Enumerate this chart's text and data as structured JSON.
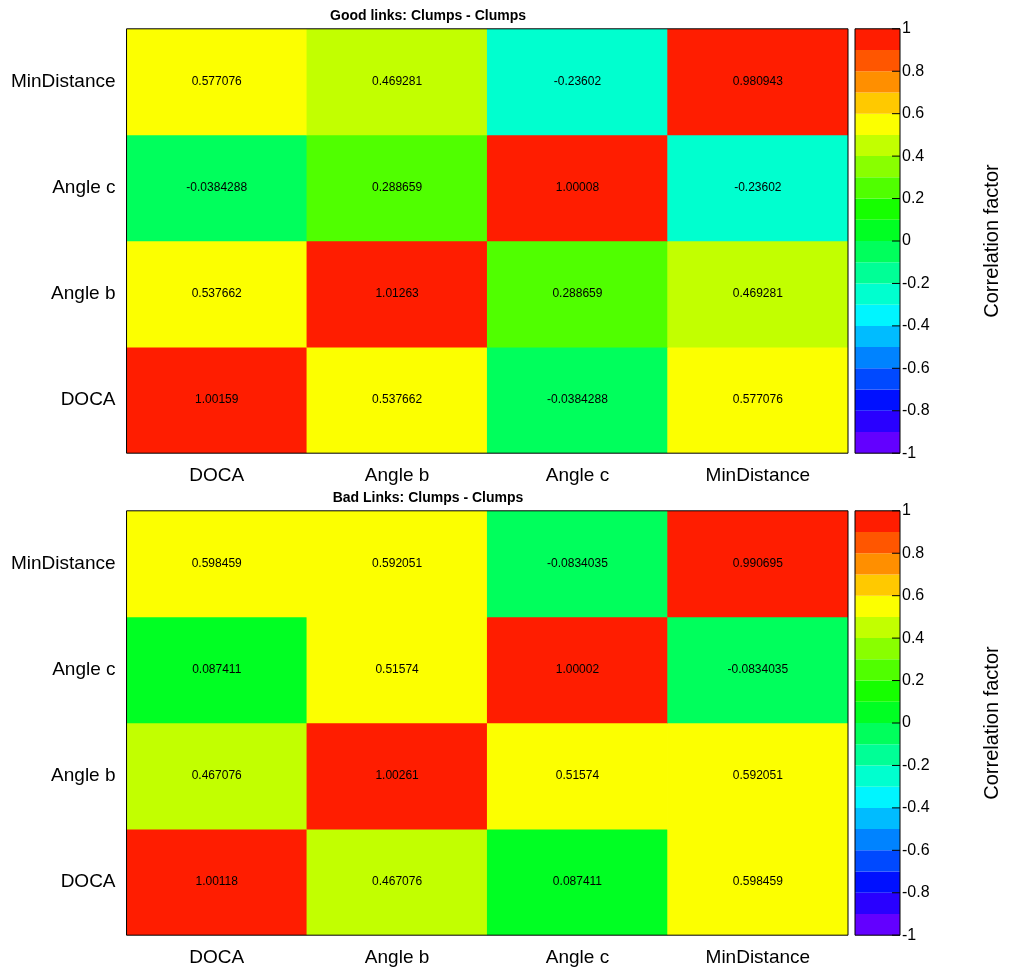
{
  "chart_data": [
    {
      "type": "heatmap",
      "title": "Good links: Clumps - Clumps",
      "categories": [
        "DOCA",
        "Angle b",
        "Angle c",
        "MinDistance"
      ],
      "y_categories": [
        "MinDistance",
        "Angle c",
        "Angle b",
        "DOCA"
      ],
      "cells": [
        [
          0.577076,
          0.469281,
          -0.23602,
          0.980943
        ],
        [
          -0.0384288,
          0.288659,
          1.00008,
          -0.23602
        ],
        [
          0.537662,
          1.01263,
          0.288659,
          0.469281
        ],
        [
          1.00159,
          0.537662,
          -0.0384288,
          0.577076
        ]
      ],
      "clim": [
        -1,
        1
      ],
      "cticks": [
        -1,
        -0.8,
        -0.6,
        -0.4,
        -0.2,
        0,
        0.2,
        0.4,
        0.6,
        0.8,
        1
      ],
      "clabel": "Correlation factor",
      "data_labels": true
    },
    {
      "type": "heatmap",
      "title": "Bad Links: Clumps - Clumps",
      "categories": [
        "DOCA",
        "Angle b",
        "Angle c",
        "MinDistance"
      ],
      "y_categories": [
        "MinDistance",
        "Angle c",
        "Angle b",
        "DOCA"
      ],
      "cells": [
        [
          0.598459,
          0.592051,
          -0.0834035,
          0.990695
        ],
        [
          0.087411,
          0.51574,
          1.00002,
          -0.0834035
        ],
        [
          0.467076,
          1.00261,
          0.51574,
          0.592051
        ],
        [
          1.00118,
          0.467076,
          0.087411,
          0.598459
        ]
      ],
      "clim": [
        -1,
        1
      ],
      "cticks": [
        -1,
        -0.8,
        -0.6,
        -0.4,
        -0.2,
        0,
        0.2,
        0.4,
        0.6,
        0.8,
        1
      ],
      "clabel": "Correlation factor",
      "data_labels": true
    }
  ]
}
